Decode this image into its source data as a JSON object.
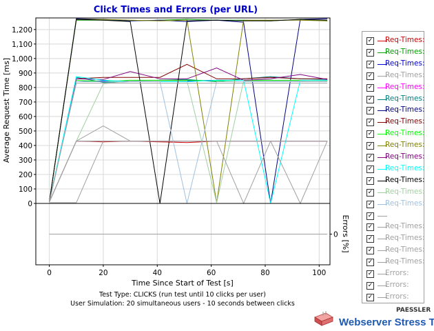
{
  "chart_data": {
    "type": "line",
    "title": "Click Times and Errors (per URL)",
    "xlabel": "Time Since Start of Test [s]",
    "ylabel": "Average Request Time [ms]",
    "y2label": "Errors [%]",
    "xlim": [
      -5,
      104
    ],
    "ylim": [
      0,
      1280
    ],
    "y2lim": [
      -1,
      1
    ],
    "x_ticks": [
      0,
      20,
      40,
      60,
      80,
      100
    ],
    "y_ticks": [
      0,
      100,
      200,
      300,
      400,
      500,
      600,
      700,
      800,
      900,
      1000,
      1100,
      1200
    ],
    "y_tick_labels": [
      "0",
      "100",
      "200",
      "300",
      "400",
      "500",
      "600",
      "700",
      "800",
      "900",
      "1,000",
      "1,100",
      "1,200"
    ],
    "y2_ticks": [
      0
    ],
    "grid": true,
    "legend_position": "right",
    "info_lines": [
      "Test Type: CLICKS (run test until 10 clicks per user)",
      "User Simulation: 20 simultaneous users - 10 seconds between clicks"
    ],
    "x": [
      0,
      10,
      20,
      30,
      41,
      51,
      62,
      72,
      82,
      93,
      103
    ],
    "series": [
      {
        "name": "Req-Times:",
        "color": "#cc0000",
        "values": [
          10,
          430,
          425,
          430,
          425,
          420,
          430,
          430,
          430,
          430,
          430
        ]
      },
      {
        "name": "Req-Times:",
        "color": "#00a000",
        "values": [
          10,
          1265,
          1265,
          1260,
          1265,
          1270,
          1265,
          1265,
          1260,
          1270,
          1260
        ]
      },
      {
        "name": "Req-Times:",
        "color": "#0000cc",
        "values": [
          10,
          840,
          845,
          845,
          850,
          845,
          850,
          850,
          850,
          845,
          850
        ]
      },
      {
        "name": "Req-Times:",
        "color": "#a0a0a0",
        "values": [
          10,
          430,
          535,
          430,
          430,
          430,
          430,
          430,
          430,
          430,
          430
        ]
      },
      {
        "name": "Req-Times:",
        "color": "#ff00ff",
        "values": [
          10,
          430,
          430,
          430,
          430,
          430,
          430,
          430,
          430,
          430,
          430
        ]
      },
      {
        "name": "Req-Times:",
        "color": "#008080",
        "values": [
          10,
          870,
          835,
          840,
          850,
          855,
          840,
          860,
          875,
          860,
          855
        ]
      },
      {
        "name": "Req-Times:",
        "color": "#000080",
        "values": [
          10,
          1275,
          1270,
          1260,
          1265,
          1255,
          1265,
          1250,
          0,
          1270,
          1275
        ]
      },
      {
        "name": "Req-Times:",
        "color": "#800000",
        "values": [
          10,
          860,
          870,
          870,
          870,
          960,
          860,
          860,
          870,
          860,
          860
        ]
      },
      {
        "name": "Req-Times:",
        "color": "#00ff00",
        "values": [
          10,
          850,
          840,
          850,
          850,
          850,
          845,
          850,
          850,
          850,
          845
        ]
      },
      {
        "name": "Req-Times:",
        "color": "#808000",
        "values": [
          10,
          1270,
          1270,
          1265,
          1260,
          1265,
          5,
          1265,
          1265,
          1265,
          1260
        ]
      },
      {
        "name": "Req-Times:",
        "color": "#800080",
        "values": [
          10,
          860,
          855,
          910,
          860,
          860,
          935,
          850,
          860,
          890,
          855
        ]
      },
      {
        "name": "Req-Times:",
        "color": "#00ffff",
        "values": [
          10,
          875,
          850,
          840,
          840,
          840,
          850,
          850,
          0,
          850,
          850
        ]
      },
      {
        "name": "Req-Times:",
        "color": "#000000",
        "values": [
          10,
          1270,
          1265,
          1255,
          0,
          1260,
          1265,
          1260,
          1260,
          1270,
          1265
        ]
      },
      {
        "name": "Req-Times:",
        "color": "#a0d0a0",
        "values": [
          10,
          430,
          825,
          845,
          845,
          845,
          5,
          845,
          845,
          845,
          845
        ]
      },
      {
        "name": "Req-Times:",
        "color": "#a0c0e0",
        "values": [
          10,
          840,
          840,
          840,
          840,
          0,
          840,
          840,
          840,
          840,
          840
        ]
      },
      {
        "name": "",
        "color": "#a0a0a0",
        "values": [
          5,
          5,
          430,
          430,
          430,
          430,
          430,
          430,
          430,
          0,
          430
        ]
      },
      {
        "name": "Req-Times:",
        "color": "#a0a0a0",
        "values": [
          10,
          830,
          830,
          830,
          830,
          830,
          830,
          830,
          830,
          830,
          830
        ]
      },
      {
        "name": "Req-Times:",
        "color": "#a0a0a0",
        "values": [
          10,
          430,
          430,
          430,
          430,
          430,
          430,
          0,
          430,
          430,
          430
        ]
      },
      {
        "name": "Req-Times:",
        "color": "#a0a0a0",
        "values": [
          10,
          430,
          430,
          430,
          430,
          430,
          430,
          430,
          430,
          430,
          430
        ]
      },
      {
        "name": "Req-Times:",
        "color": "#a0a0a0",
        "values": [
          10,
          430,
          430,
          430,
          430,
          430,
          430,
          430,
          430,
          430,
          430
        ]
      }
    ],
    "error_series": [
      {
        "name": "Errors:",
        "color": "#a0a0a0",
        "values": [
          0,
          0,
          0,
          0,
          0,
          0,
          0,
          0,
          0,
          0,
          0
        ]
      },
      {
        "name": "Errors:",
        "color": "#a0a0a0",
        "values": [
          0,
          0,
          0,
          0,
          0,
          0,
          0,
          0,
          0,
          0,
          0
        ]
      },
      {
        "name": "Errors:",
        "color": "#a0a0a0",
        "values": [
          0,
          0,
          0,
          0,
          0,
          0,
          0,
          0,
          0,
          0,
          0
        ]
      }
    ]
  },
  "legend": {
    "check_mark": "✓",
    "items": [
      {
        "label": "Req-Times:",
        "color": "#cc0000"
      },
      {
        "label": "Req-Times:",
        "color": "#00a000"
      },
      {
        "label": "Req-Times:",
        "color": "#0000cc"
      },
      {
        "label": "Req-Times:",
        "color": "#a0a0a0"
      },
      {
        "label": "Req-Times:",
        "color": "#ff00ff"
      },
      {
        "label": "Req-Times:",
        "color": "#008080"
      },
      {
        "label": "Req-Times:",
        "color": "#000080"
      },
      {
        "label": "Req-Times:",
        "color": "#800000"
      },
      {
        "label": "Req-Times:",
        "color": "#00ff00"
      },
      {
        "label": "Req-Times:",
        "color": "#808000"
      },
      {
        "label": "Req-Times:",
        "color": "#800080"
      },
      {
        "label": "Req-Times:",
        "color": "#00ffff"
      },
      {
        "label": "Req-Times:",
        "color": "#000000"
      },
      {
        "label": "Req-Times:",
        "color": "#a0d0a0"
      },
      {
        "label": "Req-Times:",
        "color": "#a0c0e0"
      },
      {
        "label": "",
        "color": "#a0a0a0"
      },
      {
        "label": "Req-Times:",
        "color": "#a0a0a0"
      },
      {
        "label": "Req-Times:",
        "color": "#a0a0a0"
      },
      {
        "label": "Req-Times:",
        "color": "#a0a0a0"
      },
      {
        "label": "Req-Times:",
        "color": "#a0a0a0"
      },
      {
        "label": "Errors:",
        "color": "#a0a0a0"
      },
      {
        "label": "Errors:",
        "color": "#a0a0a0"
      },
      {
        "label": "Errors:",
        "color": "#a0a0a0"
      }
    ]
  },
  "brand": {
    "company": "PAESSLER",
    "product": "Webserver Stress Tool",
    "icon": "paessler-logo-icon"
  }
}
